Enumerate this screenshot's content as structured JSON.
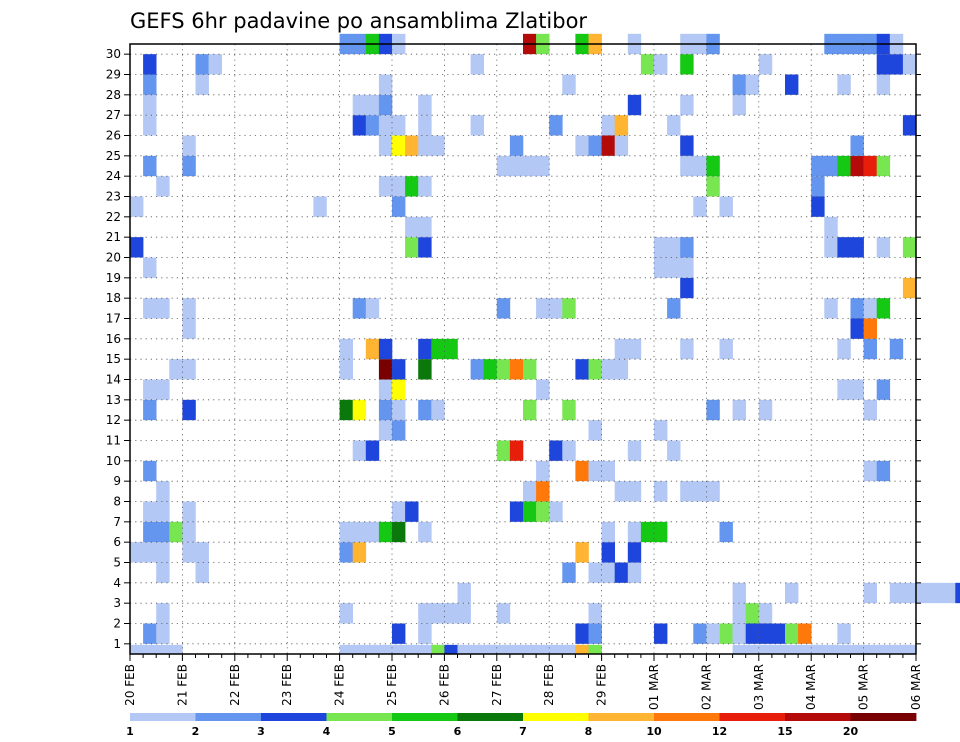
{
  "chart_data": {
    "type": "heatmap",
    "title": "GEFS 6hr padavine po ansamblima Zlatibor",
    "xlabel": "",
    "ylabel": "",
    "x_ticks": [
      "20 FEB",
      "21 FEB",
      "22 FEB",
      "23 FEB",
      "24 FEB",
      "25 FEB",
      "26 FEB",
      "27 FEB",
      "28 FEB",
      "29 FEB",
      "01 MAR",
      "02 MAR",
      "03 MAR",
      "04 MAR",
      "05 MAR",
      "06 MAR"
    ],
    "y_ticks": [
      "1",
      "2",
      "3",
      "4",
      "5",
      "6",
      "7",
      "8",
      "9",
      "10",
      "11",
      "12",
      "13",
      "14",
      "15",
      "16",
      "17",
      "18",
      "19",
      "20",
      "21",
      "22",
      "23",
      "24",
      "25",
      "26",
      "27",
      "28",
      "29",
      "30"
    ],
    "x_range": [
      "20 FEB 00",
      "06 MAR 00"
    ],
    "y_range": [
      0,
      30
    ],
    "steps_per_day": 4,
    "grid": true,
    "legend_position": "bottom",
    "colorbar": {
      "labels": [
        "1",
        "2",
        "3",
        "4",
        "5",
        "6",
        "7",
        "8",
        "10",
        "12",
        "15",
        "20"
      ],
      "colors": [
        "#b4c8f5",
        "#6496f0",
        "#1e46dc",
        "#78e650",
        "#14c814",
        "#0a780a",
        "#ffff00",
        "#ffb432",
        "#ff780a",
        "#e61e0a",
        "#b40a0a",
        "#780000"
      ]
    },
    "levels_legend": "level index 1..12 corresponds to colorbar classes; members 1-30 on y, 6-hourly steps on x",
    "cells": [
      [
        1,
        0,
        1
      ],
      [
        1,
        1,
        2
      ],
      [
        2,
        1,
        1
      ],
      [
        2,
        2,
        1
      ],
      [
        20,
        1,
        3
      ],
      [
        22,
        1,
        1
      ],
      [
        34,
        1,
        3
      ],
      [
        35,
        1,
        2
      ],
      [
        43,
        1,
        2
      ],
      [
        44,
        1,
        1
      ],
      [
        45,
        1,
        4
      ],
      [
        46,
        1,
        1
      ],
      [
        47,
        1,
        3
      ],
      [
        48,
        1,
        3
      ],
      [
        49,
        1,
        3
      ],
      [
        50,
        1,
        4
      ],
      [
        51,
        1,
        9
      ],
      [
        54,
        1,
        1
      ],
      [
        0,
        0,
        1
      ],
      [
        16,
        2,
        1
      ],
      [
        22,
        2,
        1
      ],
      [
        23,
        2,
        1
      ],
      [
        24,
        2,
        1
      ],
      [
        25,
        2,
        1
      ],
      [
        28,
        2,
        1
      ],
      [
        35,
        2,
        1
      ],
      [
        46,
        2,
        1
      ],
      [
        47,
        2,
        4
      ],
      [
        48,
        2,
        1
      ],
      [
        25,
        3,
        1
      ],
      [
        46,
        3,
        1
      ],
      [
        50,
        3,
        1
      ],
      [
        56,
        3,
        1
      ],
      [
        58,
        3,
        1
      ],
      [
        59,
        3,
        1
      ],
      [
        60,
        3,
        1
      ],
      [
        61,
        3,
        1
      ],
      [
        62,
        3,
        1
      ],
      [
        63,
        3,
        3
      ],
      [
        2,
        4,
        1
      ],
      [
        5,
        4,
        1
      ],
      [
        33,
        4,
        2
      ],
      [
        35,
        4,
        1
      ],
      [
        36,
        4,
        1
      ],
      [
        37,
        4,
        3
      ],
      [
        38,
        4,
        1
      ],
      [
        0,
        5,
        1
      ],
      [
        1,
        5,
        1
      ],
      [
        2,
        5,
        1
      ],
      [
        4,
        5,
        1
      ],
      [
        5,
        5,
        1
      ],
      [
        16,
        5,
        2
      ],
      [
        17,
        5,
        8
      ],
      [
        34,
        5,
        8
      ],
      [
        36,
        5,
        3
      ],
      [
        38,
        5,
        3
      ],
      [
        1,
        6,
        2
      ],
      [
        2,
        6,
        2
      ],
      [
        3,
        6,
        4
      ],
      [
        4,
        6,
        1
      ],
      [
        16,
        6,
        1
      ],
      [
        17,
        6,
        1
      ],
      [
        18,
        6,
        1
      ],
      [
        19,
        6,
        5
      ],
      [
        20,
        6,
        6
      ],
      [
        22,
        6,
        1
      ],
      [
        36,
        6,
        1
      ],
      [
        38,
        6,
        1
      ],
      [
        39,
        6,
        5
      ],
      [
        40,
        6,
        5
      ],
      [
        45,
        6,
        2
      ],
      [
        1,
        7,
        1
      ],
      [
        2,
        7,
        1
      ],
      [
        4,
        7,
        1
      ],
      [
        20,
        7,
        1
      ],
      [
        21,
        7,
        3
      ],
      [
        29,
        7,
        3
      ],
      [
        30,
        7,
        5
      ],
      [
        31,
        7,
        4
      ],
      [
        32,
        7,
        1
      ],
      [
        2,
        8,
        1
      ],
      [
        30,
        8,
        1
      ],
      [
        31,
        8,
        9
      ],
      [
        37,
        8,
        1
      ],
      [
        38,
        8,
        1
      ],
      [
        40,
        8,
        1
      ],
      [
        42,
        8,
        1
      ],
      [
        43,
        8,
        1
      ],
      [
        44,
        8,
        1
      ],
      [
        1,
        9,
        2
      ],
      [
        31,
        9,
        1
      ],
      [
        34,
        9,
        9
      ],
      [
        35,
        9,
        1
      ],
      [
        36,
        9,
        1
      ],
      [
        56,
        9,
        1
      ],
      [
        57,
        9,
        2
      ],
      [
        17,
        10,
        1
      ],
      [
        18,
        10,
        3
      ],
      [
        28,
        10,
        4
      ],
      [
        29,
        10,
        10
      ],
      [
        32,
        10,
        3
      ],
      [
        33,
        10,
        1
      ],
      [
        38,
        10,
        1
      ],
      [
        41,
        10,
        1
      ],
      [
        19,
        11,
        1
      ],
      [
        20,
        11,
        2
      ],
      [
        35,
        11,
        1
      ],
      [
        40,
        11,
        1
      ],
      [
        1,
        12,
        2
      ],
      [
        4,
        12,
        3
      ],
      [
        16,
        12,
        6
      ],
      [
        17,
        12,
        7
      ],
      [
        19,
        12,
        2
      ],
      [
        20,
        12,
        1
      ],
      [
        22,
        12,
        2
      ],
      [
        23,
        12,
        1
      ],
      [
        30,
        12,
        4
      ],
      [
        33,
        12,
        4
      ],
      [
        44,
        12,
        2
      ],
      [
        46,
        12,
        1
      ],
      [
        48,
        12,
        1
      ],
      [
        56,
        12,
        1
      ],
      [
        1,
        13,
        1
      ],
      [
        2,
        13,
        1
      ],
      [
        19,
        13,
        1
      ],
      [
        20,
        13,
        7
      ],
      [
        31,
        13,
        1
      ],
      [
        54,
        13,
        1
      ],
      [
        55,
        13,
        1
      ],
      [
        57,
        13,
        2
      ],
      [
        3,
        14,
        1
      ],
      [
        4,
        14,
        1
      ],
      [
        16,
        14,
        1
      ],
      [
        19,
        14,
        12
      ],
      [
        20,
        14,
        3
      ],
      [
        22,
        14,
        6
      ],
      [
        26,
        14,
        2
      ],
      [
        27,
        14,
        5
      ],
      [
        28,
        14,
        4
      ],
      [
        29,
        14,
        9
      ],
      [
        30,
        14,
        4
      ],
      [
        34,
        14,
        3
      ],
      [
        35,
        14,
        4
      ],
      [
        36,
        14,
        1
      ],
      [
        37,
        14,
        1
      ],
      [
        16,
        15,
        1
      ],
      [
        18,
        15,
        8
      ],
      [
        19,
        15,
        3
      ],
      [
        22,
        15,
        3
      ],
      [
        23,
        15,
        5
      ],
      [
        24,
        15,
        5
      ],
      [
        37,
        15,
        1
      ],
      [
        38,
        15,
        1
      ],
      [
        42,
        15,
        1
      ],
      [
        45,
        15,
        1
      ],
      [
        54,
        15,
        1
      ],
      [
        56,
        15,
        2
      ],
      [
        58,
        15,
        2
      ],
      [
        4,
        16,
        1
      ],
      [
        55,
        16,
        3
      ],
      [
        56,
        16,
        9
      ],
      [
        1,
        17,
        1
      ],
      [
        2,
        17,
        1
      ],
      [
        4,
        17,
        1
      ],
      [
        17,
        17,
        2
      ],
      [
        18,
        17,
        1
      ],
      [
        28,
        17,
        2
      ],
      [
        31,
        17,
        1
      ],
      [
        32,
        17,
        1
      ],
      [
        33,
        17,
        4
      ],
      [
        41,
        17,
        2
      ],
      [
        53,
        17,
        1
      ],
      [
        55,
        17,
        2
      ],
      [
        56,
        17,
        1
      ],
      [
        57,
        17,
        5
      ],
      [
        42,
        18,
        3
      ],
      [
        59,
        18,
        8
      ],
      [
        1,
        19,
        1
      ],
      [
        40,
        19,
        1
      ],
      [
        41,
        19,
        1
      ],
      [
        42,
        19,
        1
      ],
      [
        0,
        20,
        3
      ],
      [
        21,
        20,
        4
      ],
      [
        22,
        20,
        3
      ],
      [
        40,
        20,
        1
      ],
      [
        41,
        20,
        1
      ],
      [
        42,
        20,
        2
      ],
      [
        53,
        20,
        1
      ],
      [
        54,
        20,
        3
      ],
      [
        55,
        20,
        3
      ],
      [
        57,
        20,
        1
      ],
      [
        59,
        20,
        4
      ],
      [
        21,
        21,
        1
      ],
      [
        22,
        21,
        1
      ],
      [
        53,
        21,
        1
      ],
      [
        0,
        22,
        1
      ],
      [
        14,
        22,
        1
      ],
      [
        20,
        22,
        2
      ],
      [
        43,
        22,
        1
      ],
      [
        45,
        22,
        1
      ],
      [
        52,
        22,
        3
      ],
      [
        2,
        23,
        1
      ],
      [
        19,
        23,
        1
      ],
      [
        20,
        23,
        1
      ],
      [
        21,
        23,
        5
      ],
      [
        22,
        23,
        1
      ],
      [
        44,
        23,
        4
      ],
      [
        52,
        23,
        2
      ],
      [
        1,
        24,
        2
      ],
      [
        4,
        24,
        2
      ],
      [
        28,
        24,
        1
      ],
      [
        29,
        24,
        1
      ],
      [
        30,
        24,
        1
      ],
      [
        31,
        24,
        1
      ],
      [
        42,
        24,
        1
      ],
      [
        43,
        24,
        1
      ],
      [
        44,
        24,
        5
      ],
      [
        52,
        24,
        2
      ],
      [
        53,
        24,
        2
      ],
      [
        54,
        24,
        5
      ],
      [
        55,
        24,
        11
      ],
      [
        56,
        24,
        10
      ],
      [
        57,
        24,
        4
      ],
      [
        4,
        25,
        1
      ],
      [
        19,
        25,
        1
      ],
      [
        20,
        25,
        7
      ],
      [
        21,
        25,
        8
      ],
      [
        22,
        25,
        1
      ],
      [
        23,
        25,
        1
      ],
      [
        29,
        25,
        2
      ],
      [
        34,
        25,
        1
      ],
      [
        35,
        25,
        2
      ],
      [
        36,
        25,
        11
      ],
      [
        37,
        25,
        1
      ],
      [
        42,
        25,
        3
      ],
      [
        55,
        25,
        2
      ],
      [
        1,
        26,
        1
      ],
      [
        17,
        26,
        3
      ],
      [
        18,
        26,
        2
      ],
      [
        19,
        26,
        1
      ],
      [
        20,
        26,
        1
      ],
      [
        22,
        26,
        1
      ],
      [
        26,
        26,
        1
      ],
      [
        32,
        26,
        2
      ],
      [
        36,
        26,
        1
      ],
      [
        37,
        26,
        8
      ],
      [
        41,
        26,
        1
      ],
      [
        59,
        26,
        3
      ],
      [
        1,
        27,
        1
      ],
      [
        17,
        27,
        1
      ],
      [
        18,
        27,
        1
      ],
      [
        19,
        27,
        2
      ],
      [
        22,
        27,
        1
      ],
      [
        38,
        27,
        3
      ],
      [
        42,
        27,
        1
      ],
      [
        46,
        27,
        1
      ],
      [
        1,
        28,
        2
      ],
      [
        5,
        28,
        1
      ],
      [
        19,
        28,
        1
      ],
      [
        33,
        28,
        1
      ],
      [
        46,
        28,
        2
      ],
      [
        47,
        28,
        1
      ],
      [
        50,
        28,
        3
      ],
      [
        54,
        28,
        1
      ],
      [
        57,
        28,
        1
      ],
      [
        1,
        29,
        3
      ],
      [
        5,
        29,
        2
      ],
      [
        6,
        29,
        1
      ],
      [
        26,
        29,
        1
      ],
      [
        39,
        29,
        4
      ],
      [
        40,
        29,
        1
      ],
      [
        42,
        29,
        5
      ],
      [
        48,
        29,
        1
      ],
      [
        57,
        29,
        3
      ],
      [
        58,
        29,
        3
      ],
      [
        59,
        29,
        1
      ],
      [
        16,
        30,
        2
      ],
      [
        17,
        30,
        2
      ],
      [
        18,
        30,
        5
      ],
      [
        19,
        30,
        3
      ],
      [
        20,
        30,
        1
      ],
      [
        30,
        30,
        11
      ],
      [
        31,
        30,
        4
      ],
      [
        34,
        30,
        5
      ],
      [
        35,
        30,
        8
      ],
      [
        38,
        30,
        1
      ],
      [
        42,
        30,
        1
      ],
      [
        43,
        30,
        1
      ],
      [
        44,
        30,
        2
      ],
      [
        53,
        30,
        2
      ],
      [
        54,
        30,
        2
      ],
      [
        55,
        30,
        2
      ],
      [
        56,
        30,
        2
      ],
      [
        57,
        30,
        3
      ],
      [
        58,
        30,
        1
      ],
      [
        2,
        0,
        1
      ],
      [
        3,
        0,
        1
      ],
      [
        40,
        1,
        3
      ],
      [
        44,
        1,
        1
      ],
      [
        46,
        0,
        1
      ],
      [
        47,
        0,
        1
      ],
      [
        48,
        0,
        1
      ],
      [
        49,
        0,
        1
      ],
      [
        50,
        0,
        1
      ],
      [
        51,
        0,
        1
      ],
      [
        52,
        0,
        1
      ],
      [
        53,
        0,
        1
      ],
      [
        54,
        0,
        1
      ],
      [
        55,
        0,
        1
      ],
      [
        56,
        0,
        1
      ],
      [
        57,
        0,
        1
      ],
      [
        58,
        0,
        1
      ],
      [
        59,
        0,
        1
      ],
      [
        16,
        0,
        1
      ],
      [
        17,
        0,
        1
      ],
      [
        18,
        0,
        1
      ],
      [
        19,
        0,
        1
      ],
      [
        20,
        0,
        1
      ],
      [
        21,
        0,
        1
      ],
      [
        22,
        0,
        1
      ],
      [
        23,
        0,
        4
      ],
      [
        24,
        0,
        3
      ],
      [
        25,
        0,
        1
      ],
      [
        26,
        0,
        1
      ],
      [
        27,
        0,
        1
      ],
      [
        28,
        0,
        1
      ],
      [
        29,
        0,
        1
      ],
      [
        30,
        0,
        1
      ],
      [
        31,
        0,
        1
      ],
      [
        32,
        0,
        1
      ],
      [
        33,
        0,
        1
      ],
      [
        34,
        0,
        8
      ],
      [
        35,
        0,
        4
      ]
    ]
  }
}
